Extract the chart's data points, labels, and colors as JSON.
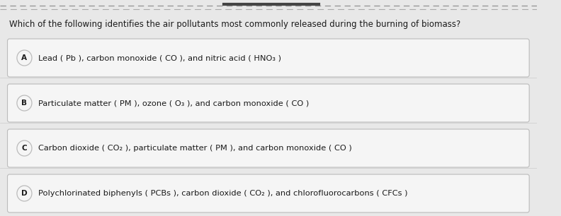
{
  "question": "Which of the following identifies the air pollutants most commonly released during the burning of biomass?",
  "options": [
    {
      "letter": "A",
      "text": "Lead ( Pb ), carbon monoxide ( CO ), and nitric acid ( HNO₃ )"
    },
    {
      "letter": "B",
      "text": "Particulate matter ( PM ), ozone ( O₃ ), and carbon monoxide ( CO )"
    },
    {
      "letter": "C",
      "text": "Carbon dioxide ( CO₂ ), particulate matter ( PM ), and carbon monoxide ( CO )"
    },
    {
      "letter": "D",
      "text": "Polychlorinated biphenyls ( PCBs ), carbon dioxide ( CO₂ ), and chlorofluorocarbons ( CFCs )"
    }
  ],
  "bg_color": "#e8e8e8",
  "box_color": "#f5f5f5",
  "box_edge_color": "#bbbbbb",
  "text_color": "#1a1a1a",
  "question_fontsize": 8.5,
  "option_fontsize": 8.2,
  "letter_fontsize": 7.5,
  "top_line1_color": "#888888",
  "top_line2_color": "#555555",
  "top_line3_color": "#888888"
}
